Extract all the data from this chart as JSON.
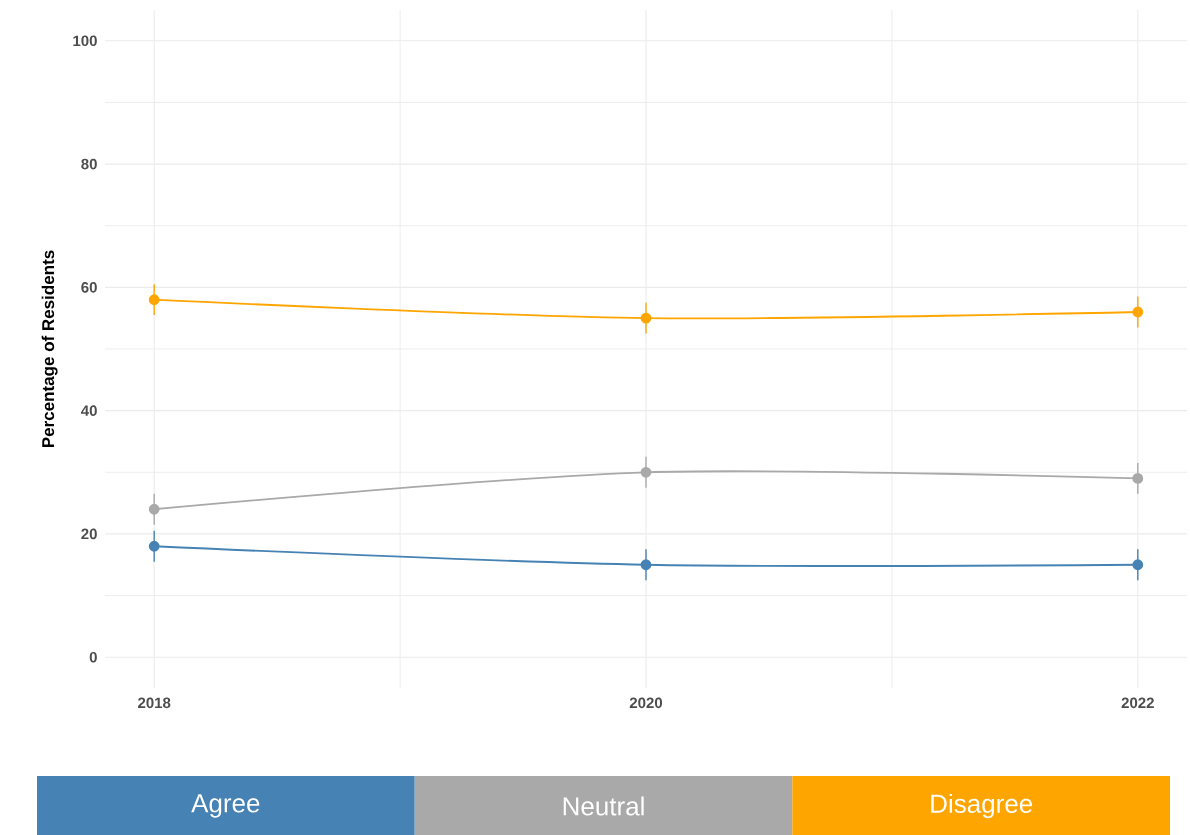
{
  "chart_data": {
    "type": "line",
    "ylabel": "Percentage of Residents",
    "x": [
      2018,
      2020,
      2022
    ],
    "series": [
      {
        "name": "Agree",
        "color": "#4682b4",
        "values": [
          18,
          15,
          15
        ],
        "errors": [
          2.5,
          2.5,
          2.5
        ]
      },
      {
        "name": "Neutral",
        "color": "#a9a9a9",
        "values": [
          24,
          30,
          29
        ],
        "errors": [
          2.5,
          2.5,
          2.5
        ]
      },
      {
        "name": "Disagree",
        "color": "#ffa500",
        "values": [
          58,
          55,
          56
        ],
        "errors": [
          2.5,
          2.5,
          2.5
        ]
      }
    ],
    "xlim": [
      2017.8,
      2022.2
    ],
    "ylim": [
      -5,
      105
    ],
    "xticks": [
      2018,
      {
        "value": 2019,
        "label": null
      },
      2020,
      {
        "value": 2021,
        "label": null
      },
      2022
    ],
    "yticks": [
      0,
      {
        "value": 10,
        "label": null
      },
      20,
      {
        "value": 30,
        "label": null
      },
      40,
      {
        "value": 50,
        "label": null
      },
      60,
      {
        "value": 70,
        "label": null
      },
      80,
      {
        "value": 90,
        "label": null
      },
      100
    ],
    "grid": true,
    "legend": "bottom",
    "marker": "circle",
    "line_style": "solid"
  }
}
